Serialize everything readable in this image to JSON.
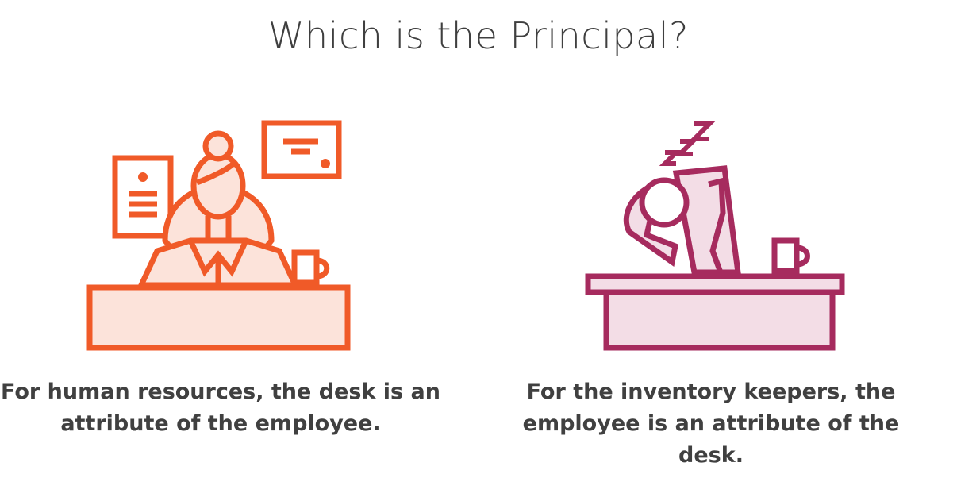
{
  "title": "Which is the Principal?",
  "left_panel": {
    "illustration": "hr-employee-at-desk-icon",
    "caption": "For human resources, the desk is an attribute of the employee.",
    "color": "#F05A28",
    "fill_color": "#FCE3DA"
  },
  "right_panel": {
    "illustration": "sleeping-employee-at-desk-icon",
    "sleep_text": "zzZ",
    "caption": "For the inventory keepers, the employee is an attribute of the desk.",
    "color": "#A62B5E",
    "fill_color": "#F3DDE6"
  }
}
